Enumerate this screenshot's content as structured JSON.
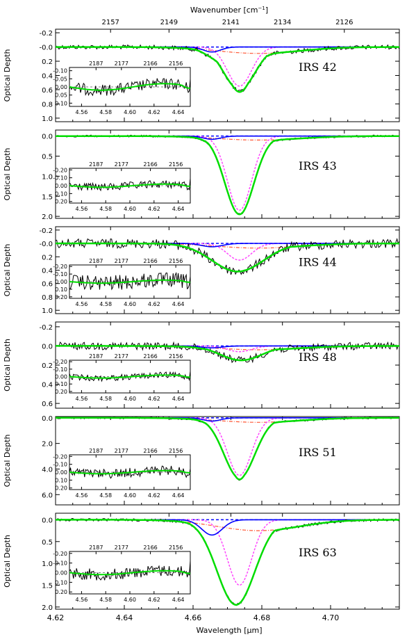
{
  "figure": {
    "top_axis_label": "Wavenumber [cm",
    "top_axis_label_sup": "−1",
    "top_axis_label_end": "]",
    "bottom_axis_label": "Wavelength [μm]",
    "y_axis_label": "Optical Depth"
  },
  "colors": {
    "spectrum": "#000000",
    "total_fit": "#00dd00",
    "blue_component": "#0000ff",
    "magenta_component": "#ff44ff",
    "red_component": "#ff5533",
    "zero_line": "#0000ff"
  },
  "chart_data": {
    "type": "line",
    "x_axis": {
      "label": "Wavelength [μm]",
      "range": [
        4.62,
        4.72
      ],
      "ticks": [
        4.62,
        4.64,
        4.66,
        4.68,
        4.7
      ],
      "tick_labels": [
        "4.62",
        "4.64",
        "4.66",
        "4.68",
        "4.70"
      ]
    },
    "top_axis": {
      "label": "Wavenumber [cm−1]",
      "tick_labels": [
        "2157",
        "2149",
        "2141",
        "2134",
        "2126"
      ],
      "tick_wavelengths": [
        4.636,
        4.653,
        4.671,
        4.686,
        4.704
      ]
    },
    "inset_axes": {
      "x_range": [
        4.55,
        4.65
      ],
      "bottom_tick_labels": [
        "4.56",
        "4.58",
        "4.60",
        "4.62",
        "4.64"
      ],
      "bottom_tick_values": [
        4.56,
        4.58,
        4.6,
        4.62,
        4.64
      ],
      "top_tick_labels": [
        "2187",
        "2177",
        "2166",
        "2156"
      ],
      "top_tick_wavelengths": [
        4.572,
        4.593,
        4.617,
        4.638
      ]
    },
    "panels": [
      {
        "label": "IRS 42",
        "ylim": [
          -0.25,
          1.05
        ],
        "yticks": [
          -0.2,
          0.0,
          0.2,
          0.4,
          0.6,
          0.8,
          1.0
        ],
        "ytick_labels": [
          "-0.2",
          "-0.0",
          "0.2",
          "0.4",
          "0.6",
          "0.8",
          "1.0"
        ],
        "peak_depth": 0.6,
        "center": 4.6735,
        "width": 0.0045,
        "blue": {
          "center": 4.6655,
          "depth": 0.07,
          "width": 0.0025
        },
        "magenta": {
          "center": 4.6735,
          "depth": 0.55,
          "width": 0.0035
        },
        "red": {
          "center": 4.679,
          "depth": 0.09,
          "width": 0.012
        },
        "noise": 0.03,
        "inset_ylim": [
          -0.12,
          0.12
        ],
        "inset_yticks": [
          -0.1,
          -0.05,
          0.0,
          0.05,
          0.1
        ],
        "inset_ytick_labels": [
          "-0.10",
          "-0.05",
          "0.00",
          "0.05",
          "0.10"
        ],
        "inset_noise": 0.035
      },
      {
        "label": "IRS 43",
        "ylim": [
          -0.15,
          2.05
        ],
        "yticks": [
          0.0,
          0.5,
          1.0,
          1.5,
          2.0
        ],
        "ytick_labels": [
          "0.0",
          "0.5",
          "1.0",
          "1.5",
          "2.0"
        ],
        "peak_depth": 1.95,
        "center": 4.6735,
        "width": 0.0042,
        "blue": {
          "center": 4.6655,
          "depth": 0.08,
          "width": 0.0025
        },
        "magenta": {
          "center": 4.6735,
          "depth": 1.85,
          "width": 0.0035
        },
        "red": {
          "center": 4.679,
          "depth": 0.1,
          "width": 0.012
        },
        "noise": 0.025,
        "inset_ylim": [
          -0.22,
          0.22
        ],
        "inset_yticks": [
          -0.2,
          -0.1,
          0.0,
          0.1,
          0.2
        ],
        "inset_ytick_labels": [
          "-0.20",
          "-0.10",
          "0.00",
          "0.10",
          "0.20"
        ],
        "inset_noise": 0.05
      },
      {
        "label": "IRS 44",
        "ylim": [
          -0.25,
          1.05
        ],
        "yticks": [
          -0.2,
          0.0,
          0.2,
          0.4,
          0.6,
          0.8,
          1.0
        ],
        "ytick_labels": [
          "-0.2",
          "-0.0",
          "0.2",
          "0.4",
          "0.6",
          "0.8",
          "1.0"
        ],
        "peak_depth": 0.42,
        "center": 4.673,
        "width": 0.0075,
        "blue": {
          "center": 4.6655,
          "depth": 0.05,
          "width": 0.003
        },
        "magenta": {
          "center": 4.6735,
          "depth": 0.25,
          "width": 0.0035
        },
        "red": {
          "center": 4.679,
          "depth": 0.07,
          "width": 0.012
        },
        "noise": 0.07,
        "inset_ylim": [
          -0.22,
          0.22
        ],
        "inset_yticks": [
          -0.2,
          -0.1,
          0.0,
          0.1,
          0.2
        ],
        "inset_ytick_labels": [
          "-0.20",
          "-0.10",
          "0.00",
          "0.10",
          "0.20"
        ],
        "inset_noise": 0.1
      },
      {
        "label": "IRS 48",
        "ylim": [
          -0.25,
          0.65
        ],
        "yticks": [
          -0.2,
          0.0,
          0.2,
          0.4,
          0.6
        ],
        "ytick_labels": [
          "-0.2",
          "0.0",
          "0.2",
          "0.4",
          "0.6"
        ],
        "peak_depth": 0.15,
        "center": 4.674,
        "width": 0.006,
        "blue": {
          "center": 4.6655,
          "depth": 0.02,
          "width": 0.003
        },
        "magenta": {
          "center": 4.6735,
          "depth": 0.06,
          "width": 0.0035
        },
        "red": {
          "center": 4.679,
          "depth": 0.04,
          "width": 0.012
        },
        "noise": 0.04,
        "inset_ylim": [
          -0.22,
          0.22
        ],
        "inset_yticks": [
          -0.2,
          -0.1,
          0.0,
          0.1,
          0.2
        ],
        "inset_ytick_labels": [
          "-0.20",
          "-0.10",
          "0.00",
          "0.10",
          "0.20"
        ],
        "inset_noise": 0.04
      },
      {
        "label": "IRS 51",
        "ylim": [
          -0.1,
          6.8
        ],
        "yticks": [
          0.0,
          2.0,
          4.0,
          6.0
        ],
        "ytick_labels": [
          "0.0",
          "2.0",
          "4.0",
          "6.0"
        ],
        "peak_depth": 4.7,
        "center": 4.6735,
        "width": 0.0045,
        "blue": {
          "center": 4.6655,
          "depth": 0.25,
          "width": 0.0025
        },
        "magenta": {
          "center": 4.6735,
          "depth": 4.5,
          "width": 0.0035
        },
        "red": {
          "center": 4.679,
          "depth": 0.35,
          "width": 0.012
        },
        "noise": 0.08,
        "inset_ylim": [
          -0.22,
          0.22
        ],
        "inset_yticks": [
          -0.2,
          -0.1,
          0.0,
          0.1,
          0.2
        ],
        "inset_ytick_labels": [
          "-0.20",
          "-0.10",
          "0.00",
          "0.10",
          "0.20"
        ],
        "inset_noise": 0.06
      },
      {
        "label": "IRS 63",
        "ylim": [
          -0.15,
          2.05
        ],
        "yticks": [
          0.0,
          0.5,
          1.0,
          1.5,
          2.0
        ],
        "ytick_labels": [
          "0.0",
          "0.5",
          "1.0",
          "1.5",
          "2.0"
        ],
        "peak_depth": 1.95,
        "center": 4.6725,
        "width": 0.0055,
        "blue": {
          "center": 4.6655,
          "depth": 0.35,
          "width": 0.003
        },
        "magenta": {
          "center": 4.6735,
          "depth": 1.5,
          "width": 0.0035
        },
        "red": {
          "center": 4.679,
          "depth": 0.25,
          "width": 0.012
        },
        "noise": 0.03,
        "inset_ylim": [
          -0.22,
          0.22
        ],
        "inset_yticks": [
          -0.2,
          -0.1,
          0.0,
          0.1,
          0.2
        ],
        "inset_ytick_labels": [
          "-0.20",
          "-0.10",
          "0.00",
          "0.10",
          "0.20"
        ],
        "inset_noise": 0.06
      }
    ]
  }
}
